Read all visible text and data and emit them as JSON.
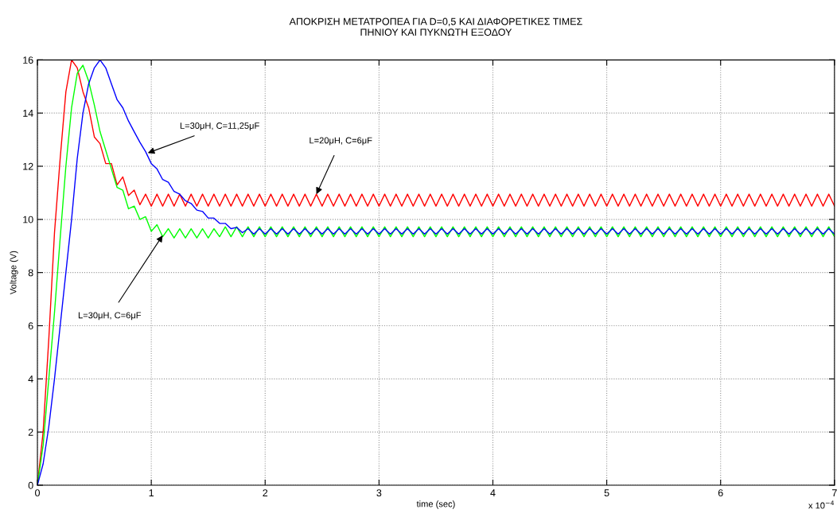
{
  "chart_data": {
    "type": "line",
    "title": "ΑΠΟΚΡΙΣΗ ΜΕΤΑΤΡΟΠΕΑ ΓΙΑ D=0,5 ΚΑΙ ΔΙΑΦΟΡΕΤΙΚΕΣ ΤΙΜΕΣ\nΠΗΝΙΟΥ ΚΑΙ ΠΥΚΝΩΤΗ ΕΞΟΔΟΥ",
    "xlabel": "time (sec)",
    "ylabel": "Voltage (V)",
    "xlim": [
      0,
      7
    ],
    "ylim": [
      0,
      16
    ],
    "xticks": [
      0,
      1,
      2,
      3,
      4,
      5,
      6,
      7
    ],
    "yticks": [
      0,
      2,
      4,
      6,
      8,
      10,
      12,
      14,
      16
    ],
    "grid": true,
    "legend": false,
    "marker": "none",
    "line_style": "solid",
    "annotations": [
      {
        "text": "L=30μH, C=11,25μF",
        "x": 0.97,
        "y": 12.5
      },
      {
        "text": "L=20μH, C=6μF",
        "x": 2.45,
        "y": 10.95
      },
      {
        "text": "L=30μH, C=6μF",
        "x": 1.1,
        "y": 9.4
      },
      "x 10$^{−4}$"
    ],
    "x": [
      0,
      0.05,
      0.1,
      0.15,
      0.2,
      0.25,
      0.3,
      0.35,
      0.4,
      0.45,
      0.5,
      0.55,
      0.6,
      0.65,
      0.7,
      0.75,
      0.8,
      0.85,
      0.9,
      0.95,
      1,
      1.05,
      1.1,
      1.15,
      1.2,
      1.25,
      1.3,
      1.35,
      1.4,
      1.45,
      1.5,
      1.55,
      1.6,
      1.65,
      1.7,
      1.75,
      1.8,
      1.85,
      1.9,
      1.95,
      2,
      2.05,
      2.1,
      2.15,
      2.2,
      2.25,
      2.3,
      2.35,
      2.4,
      2.45,
      2.5,
      2.55,
      2.6,
      2.65,
      2.7,
      2.75,
      2.8,
      2.85,
      2.9,
      2.95,
      3,
      3.05,
      3.1,
      3.15,
      3.2,
      3.25,
      3.3,
      3.35,
      3.4,
      3.45,
      3.5,
      3.55,
      3.6,
      3.65,
      3.7,
      3.75,
      3.8,
      3.85,
      3.9,
      3.95,
      4,
      4.05,
      4.1,
      4.15,
      4.2,
      4.25,
      4.3,
      4.35,
      4.4,
      4.45,
      4.5,
      4.55,
      4.6,
      4.65,
      4.7,
      4.75,
      4.8,
      4.85,
      4.9,
      4.95,
      5,
      5.05,
      5.1,
      5.15,
      5.2,
      5.25,
      5.3,
      5.35,
      5.4,
      5.45,
      5.5,
      5.55,
      5.6,
      5.65,
      5.7,
      5.75,
      5.8,
      5.85,
      5.9,
      5.95,
      6,
      6.05,
      6.1,
      6.15,
      6.2,
      6.25,
      6.3,
      6.35,
      6.4,
      6.45,
      6.5,
      6.55,
      6.6,
      6.65,
      6.7,
      6.75,
      6.8,
      6.85,
      6.9,
      6.95,
      7
    ],
    "series": [
      {
        "color": "#ff0000",
        "values": [
          0,
          2,
          5.5,
          9.5,
          12.3,
          14.8,
          16.0,
          15.7,
          14.8,
          14.2,
          13.1,
          12.85,
          12.1,
          12.1,
          11.3,
          11.6,
          10.9,
          11.1,
          10.55,
          10.95,
          10.5,
          10.95,
          10.5,
          10.95,
          10.5,
          10.95,
          10.5,
          10.95,
          10.5,
          10.95,
          10.5,
          10.95,
          10.5,
          10.95,
          10.5,
          10.95,
          10.5,
          10.95,
          10.5,
          10.95,
          10.5,
          10.95,
          10.5,
          10.95,
          10.5,
          10.95,
          10.5,
          10.95,
          10.5,
          10.95,
          10.5,
          10.95,
          10.5,
          10.95,
          10.5,
          10.95,
          10.5,
          10.95,
          10.5,
          10.95,
          10.5,
          10.95,
          10.5,
          10.95,
          10.5,
          10.95,
          10.5,
          10.95,
          10.5,
          10.95,
          10.5,
          10.95,
          10.5,
          10.95,
          10.5,
          10.95,
          10.5,
          10.95,
          10.5,
          10.95,
          10.5,
          10.95,
          10.5,
          10.95,
          10.5,
          10.95,
          10.5,
          10.95,
          10.5,
          10.95,
          10.5,
          10.95,
          10.5,
          10.95,
          10.5,
          10.95,
          10.5,
          10.95,
          10.5,
          10.95,
          10.5,
          10.95,
          10.5,
          10.95,
          10.5,
          10.95,
          10.5,
          10.95,
          10.5,
          10.95,
          10.5,
          10.95,
          10.5,
          10.95,
          10.5,
          10.95,
          10.5,
          10.95,
          10.5,
          10.95,
          10.5,
          10.95,
          10.5,
          10.95,
          10.5,
          10.95,
          10.5,
          10.95,
          10.5,
          10.95,
          10.5,
          10.95,
          10.5,
          10.95,
          10.5,
          10.95,
          10.5,
          10.95,
          10.5,
          10.95,
          10.5
        ]
      },
      {
        "color": "#00ff00",
        "values": [
          0,
          1.5,
          4,
          6.5,
          9.3,
          12,
          14.2,
          15.5,
          15.8,
          15.2,
          14.3,
          13.3,
          12.6,
          11.9,
          11.2,
          11.1,
          10.4,
          10.5,
          10.0,
          10.1,
          9.55,
          9.8,
          9.35,
          9.65,
          9.3,
          9.65,
          9.3,
          9.65,
          9.3,
          9.65,
          9.3,
          9.65,
          9.35,
          9.72,
          9.35,
          9.72,
          9.35,
          9.72,
          9.35,
          9.72,
          9.35,
          9.72,
          9.35,
          9.72,
          9.35,
          9.72,
          9.35,
          9.72,
          9.35,
          9.72,
          9.35,
          9.72,
          9.35,
          9.72,
          9.35,
          9.72,
          9.35,
          9.72,
          9.35,
          9.72,
          9.35,
          9.72,
          9.35,
          9.72,
          9.35,
          9.72,
          9.35,
          9.72,
          9.35,
          9.72,
          9.35,
          9.72,
          9.35,
          9.72,
          9.35,
          9.72,
          9.35,
          9.72,
          9.35,
          9.72,
          9.35,
          9.72,
          9.35,
          9.72,
          9.35,
          9.72,
          9.35,
          9.72,
          9.35,
          9.72,
          9.35,
          9.72,
          9.35,
          9.72,
          9.35,
          9.72,
          9.35,
          9.72,
          9.35,
          9.72,
          9.35,
          9.72,
          9.35,
          9.72,
          9.35,
          9.72,
          9.35,
          9.72,
          9.35,
          9.72,
          9.35,
          9.72,
          9.35,
          9.72,
          9.35,
          9.72,
          9.35,
          9.72,
          9.35,
          9.72,
          9.35,
          9.72,
          9.35,
          9.72,
          9.35,
          9.72,
          9.35,
          9.72,
          9.35,
          9.72,
          9.35,
          9.72,
          9.35,
          9.72,
          9.35,
          9.72,
          9.35,
          9.72,
          9.35,
          9.72,
          9.35
        ]
      },
      {
        "color": "#0000ff",
        "values": [
          0,
          0.8,
          2.2,
          4,
          6,
          8,
          10,
          12.3,
          14,
          15.1,
          15.7,
          16.0,
          15.7,
          15.1,
          14.5,
          14.2,
          13.7,
          13.3,
          12.9,
          12.55,
          12.1,
          11.9,
          11.5,
          11.4,
          11.05,
          10.95,
          10.7,
          10.6,
          10.35,
          10.3,
          10.05,
          10.05,
          9.85,
          9.85,
          9.65,
          9.7,
          9.5,
          9.65,
          9.45,
          9.65,
          9.45,
          9.65,
          9.45,
          9.65,
          9.45,
          9.65,
          9.45,
          9.65,
          9.45,
          9.65,
          9.45,
          9.65,
          9.45,
          9.65,
          9.45,
          9.65,
          9.45,
          9.65,
          9.45,
          9.65,
          9.45,
          9.65,
          9.45,
          9.65,
          9.45,
          9.65,
          9.45,
          9.65,
          9.45,
          9.65,
          9.45,
          9.65,
          9.45,
          9.65,
          9.45,
          9.65,
          9.45,
          9.65,
          9.45,
          9.65,
          9.45,
          9.65,
          9.45,
          9.65,
          9.45,
          9.65,
          9.45,
          9.65,
          9.45,
          9.65,
          9.45,
          9.65,
          9.45,
          9.65,
          9.45,
          9.65,
          9.45,
          9.65,
          9.45,
          9.65,
          9.45,
          9.65,
          9.45,
          9.65,
          9.45,
          9.65,
          9.45,
          9.65,
          9.45,
          9.65,
          9.45,
          9.65,
          9.45,
          9.65,
          9.45,
          9.65,
          9.45,
          9.65,
          9.45,
          9.65,
          9.45,
          9.65,
          9.45,
          9.65,
          9.45,
          9.65,
          9.45,
          9.65,
          9.45,
          9.65,
          9.45,
          9.65,
          9.45,
          9.65,
          9.45,
          9.65,
          9.45,
          9.65,
          9.45,
          9.65,
          9.45
        ]
      }
    ]
  }
}
